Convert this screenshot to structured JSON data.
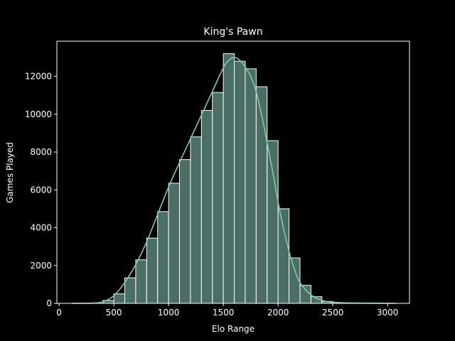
{
  "chart_data": {
    "type": "bar",
    "title": "King's Pawn",
    "xlabel": "Elo Range",
    "ylabel": "Games Played",
    "xlim": [
      -20,
      3200
    ],
    "ylim": [
      0,
      13860
    ],
    "xticks": [
      0,
      500,
      1000,
      1500,
      2000,
      2500,
      3000
    ],
    "yticks": [
      0,
      2000,
      4000,
      6000,
      8000,
      10000,
      12000
    ],
    "bin_width": 100,
    "bins": [
      {
        "x0": 400,
        "x1": 500,
        "value": 150
      },
      {
        "x0": 500,
        "x1": 600,
        "value": 500
      },
      {
        "x0": 600,
        "x1": 700,
        "value": 1350
      },
      {
        "x0": 700,
        "x1": 800,
        "value": 2300
      },
      {
        "x0": 800,
        "x1": 900,
        "value": 3450
      },
      {
        "x0": 900,
        "x1": 1000,
        "value": 4850
      },
      {
        "x0": 1000,
        "x1": 1100,
        "value": 6350
      },
      {
        "x0": 1100,
        "x1": 1200,
        "value": 7600
      },
      {
        "x0": 1200,
        "x1": 1300,
        "value": 8800
      },
      {
        "x0": 1300,
        "x1": 1400,
        "value": 10200
      },
      {
        "x0": 1400,
        "x1": 1500,
        "value": 11150
      },
      {
        "x0": 1500,
        "x1": 1600,
        "value": 13200
      },
      {
        "x0": 1600,
        "x1": 1700,
        "value": 12800
      },
      {
        "x0": 1700,
        "x1": 1800,
        "value": 12400
      },
      {
        "x0": 1800,
        "x1": 1900,
        "value": 11450
      },
      {
        "x0": 1900,
        "x1": 2000,
        "value": 8600
      },
      {
        "x0": 2000,
        "x1": 2100,
        "value": 5000
      },
      {
        "x0": 2100,
        "x1": 2200,
        "value": 2400
      },
      {
        "x0": 2200,
        "x1": 2300,
        "value": 950
      },
      {
        "x0": 2300,
        "x1": 2400,
        "value": 350
      },
      {
        "x0": 2400,
        "x1": 2500,
        "value": 100
      }
    ],
    "kde": [
      [
        120,
        0
      ],
      [
        300,
        10
      ],
      [
        400,
        80
      ],
      [
        500,
        400
      ],
      [
        600,
        1100
      ],
      [
        700,
        2050
      ],
      [
        800,
        3250
      ],
      [
        900,
        4700
      ],
      [
        1000,
        6150
      ],
      [
        1100,
        7450
      ],
      [
        1200,
        8700
      ],
      [
        1300,
        9950
      ],
      [
        1400,
        11200
      ],
      [
        1500,
        12450
      ],
      [
        1550,
        12850
      ],
      [
        1600,
        13000
      ],
      [
        1650,
        12850
      ],
      [
        1700,
        12500
      ],
      [
        1750,
        12000
      ],
      [
        1800,
        11200
      ],
      [
        1850,
        9950
      ],
      [
        1900,
        8500
      ],
      [
        1950,
        7000
      ],
      [
        2000,
        5350
      ],
      [
        2050,
        3950
      ],
      [
        2100,
        2750
      ],
      [
        2150,
        1800
      ],
      [
        2200,
        1100
      ],
      [
        2300,
        450
      ],
      [
        2400,
        160
      ],
      [
        2500,
        60
      ],
      [
        2700,
        15
      ],
      [
        3080,
        0
      ]
    ],
    "colors": {
      "bar_fill": "#4a6e64",
      "bar_edge": "#ffffff",
      "kde_line": "#7ec8b4",
      "axis": "#ffffff",
      "background": "#000000"
    },
    "grid": false,
    "legend": "none"
  }
}
